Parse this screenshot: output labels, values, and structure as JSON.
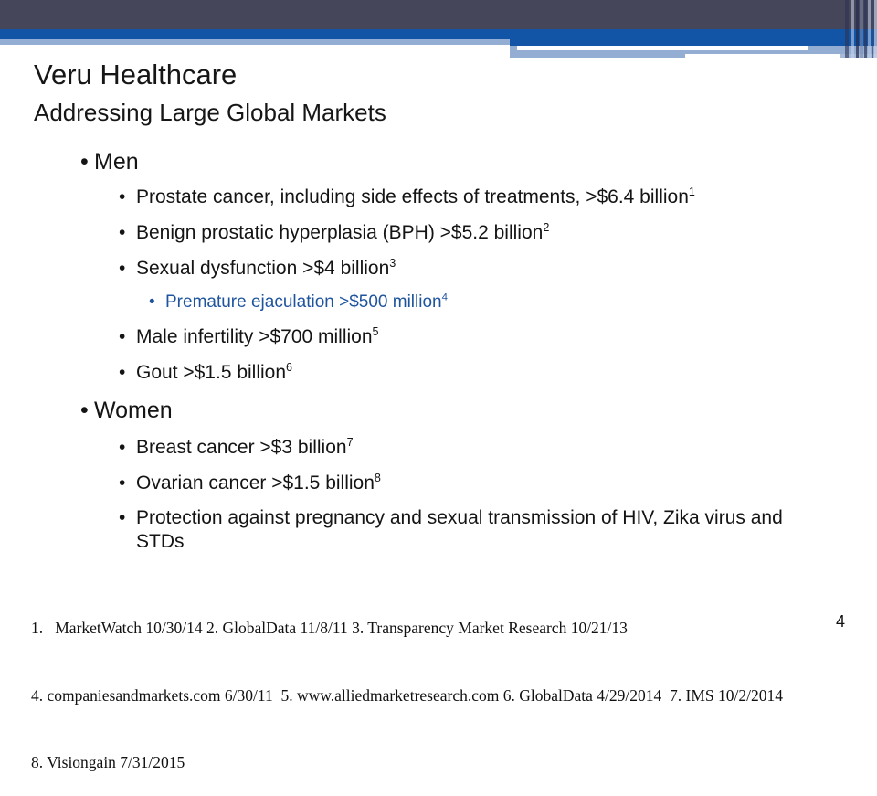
{
  "slide": {
    "title": "Veru Healthcare",
    "subtitle": "Addressing Large Global Markets",
    "page_number": "4"
  },
  "colors": {
    "header_dark_band": "#46465A",
    "header_blue_band": "#1254A6",
    "header_light_blue_band": "#93ADD3",
    "sub_bullet_blue_text": "#1E549E"
  },
  "bullets": [
    {
      "level": 1,
      "text": "Men",
      "sup": ""
    },
    {
      "level": 2,
      "text": "Prostate cancer, including side effects of treatments, >$6.4 billion",
      "sup": "1"
    },
    {
      "level": 2,
      "text": "Benign prostatic hyperplasia (BPH) >$5.2 billion",
      "sup": "2"
    },
    {
      "level": 2,
      "text": "Sexual dysfunction >$4 billion",
      "sup": "3"
    },
    {
      "level": 3,
      "text": "Premature ejaculation >$500 million",
      "sup": "4"
    },
    {
      "level": 2,
      "text": "Male infertility >$700 million",
      "sup": "5"
    },
    {
      "level": 2,
      "text": "Gout >$1.5 billion",
      "sup": "6"
    },
    {
      "level": 1,
      "text": "Women",
      "sup": ""
    },
    {
      "level": 2,
      "text": "Breast cancer >$3 billion",
      "sup": "7"
    },
    {
      "level": 2,
      "text": "Ovarian cancer >$1.5 billion",
      "sup": "8"
    },
    {
      "level": 2,
      "text": "Protection against pregnancy and sexual transmission of HIV, Zika virus and STDs",
      "sup": ""
    }
  ],
  "footnotes": {
    "line1": "1.   MarketWatch 10/30/14 2. GlobalData 11/8/11 3. Transparency Market Research 10/21/13",
    "line2": "4. companiesandmarkets.com 6/30/11  5. www.alliedmarketresearch.com 6. GlobalData 4/29/2014  7. IMS 10/2/2014",
    "line3": "8. Visiongain 7/31/2015"
  }
}
